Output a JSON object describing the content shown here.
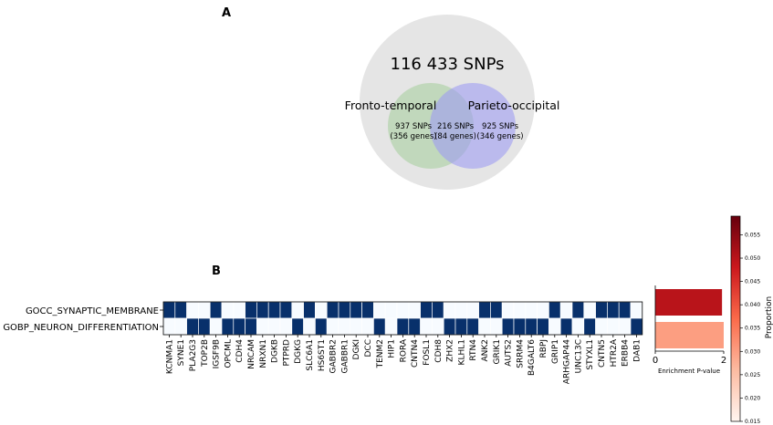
{
  "panel_a": {
    "label": "A",
    "total_label": "116 433 SNPs",
    "left_set": {
      "name": "Fronto-temporal",
      "line1": "937 SNPs",
      "line2": "(356 genes)"
    },
    "overlap": {
      "line1": "216 SNPs",
      "line2": "(84 genes)"
    },
    "right_set": {
      "name": "Parieto-occipital",
      "line1": "925 SNPs",
      "line2": "(346 genes)"
    },
    "colors": {
      "outer": "#e5e5e5",
      "left": "#a8cfa0",
      "right": "#9e9cf2"
    }
  },
  "panel_b": {
    "label": "B",
    "heatmap": {
      "rows": [
        "GOCC_SYNAPTIC_MEMBRANE",
        "GOBP_NEURON_DIFFERENTIATION"
      ],
      "genes": [
        "KCNMA1",
        "SYNE1",
        "PLA2G3",
        "TOP2B",
        "IGSF9B",
        "OPCML",
        "CDH4",
        "NRCAM",
        "NRXN1",
        "DGKB",
        "PTPRD",
        "DGKG",
        "SLC6A1",
        "HS6ST1",
        "GABBR2",
        "GABBR1",
        "DGKI",
        "DCC",
        "TENM2",
        "HIP1",
        "RORA",
        "CNTN4",
        "FOSL1",
        "CDH8",
        "ZHX2",
        "KLHL1",
        "RTN4",
        "ANK2",
        "GRIK1",
        "AUTS2",
        "SRRM4",
        "B4GALT6",
        "RBPJ",
        "GRIP1",
        "ARHGAP44",
        "UNC13C",
        "STYXL1",
        "CNTN5",
        "HTR2A",
        "ERBB4",
        "DAB1"
      ],
      "membership": [
        [
          1,
          1,
          0,
          0,
          1,
          0,
          0,
          1,
          1,
          1,
          1,
          0,
          1,
          0,
          1,
          1,
          1,
          1,
          0,
          0,
          0,
          0,
          1,
          1,
          0,
          0,
          0,
          1,
          1,
          0,
          0,
          0,
          0,
          1,
          0,
          1,
          0,
          1,
          1,
          1,
          0
        ],
        [
          0,
          0,
          1,
          1,
          0,
          1,
          1,
          1,
          0,
          0,
          0,
          1,
          0,
          1,
          0,
          0,
          0,
          0,
          1,
          0,
          1,
          1,
          0,
          0,
          1,
          1,
          1,
          0,
          0,
          1,
          1,
          1,
          1,
          0,
          1,
          0,
          1,
          0,
          0,
          0,
          1
        ]
      ],
      "on_color": "#08306b",
      "off_color": "#f7fbff"
    },
    "enrichment": {
      "type": "bar",
      "orientation": "horizontal",
      "categories": [
        "GOCC_SYNAPTIC_MEMBRANE",
        "GOBP_NEURON_DIFFERENTIATION"
      ],
      "values": [
        1.95,
        2.0
      ],
      "proportion": [
        0.05,
        0.03
      ],
      "xlim": [
        0,
        2
      ],
      "xticks": [
        "0",
        "2"
      ],
      "xlabel": "Enrichment P-value"
    },
    "colorbar": {
      "label": "Proportion",
      "range": [
        0.015,
        0.059
      ],
      "ticks": [
        "0.015",
        "0.020",
        "0.025",
        "0.030",
        "0.035",
        "0.040",
        "0.045",
        "0.050",
        "0.055"
      ],
      "colors": [
        "#fff5f0",
        "#fcbba1",
        "#fb6a4a",
        "#cb181d",
        "#67000d"
      ]
    }
  }
}
